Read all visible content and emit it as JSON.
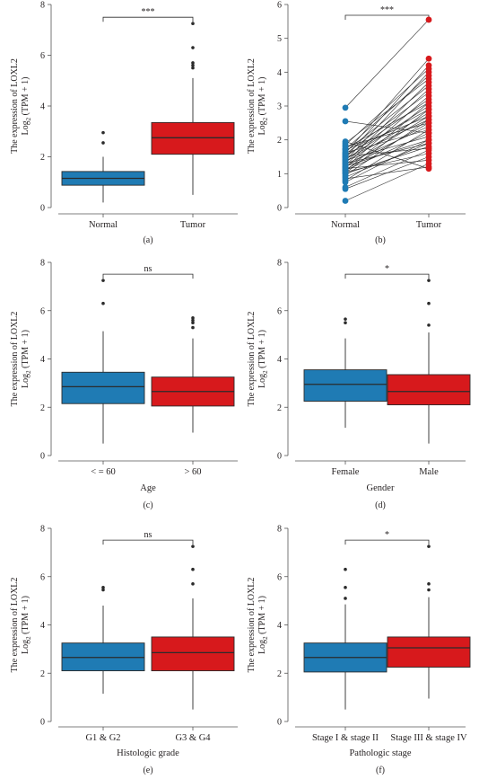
{
  "figure": {
    "colors": {
      "blue": "#1f7bb4",
      "red": "#d7191c",
      "line": "#2b2b2b",
      "axis": "#555555"
    },
    "y_axis_label_line1": "The expression of LOXL2",
    "y_axis_label_line2_pre": "Log",
    "y_axis_label_line2_sub": "2",
    "y_axis_label_line2_post": " (TPM + 1)"
  },
  "chart_data": [
    {
      "type": "box",
      "panel_label": "(a)",
      "xlabel": "",
      "ylim": [
        0,
        8
      ],
      "yticks": [
        0,
        2,
        4,
        6,
        8
      ],
      "ytick_labels": [
        "0",
        "2",
        "4",
        "6",
        "8"
      ],
      "significance": "***",
      "categories": [
        "Normal",
        "Tumor"
      ],
      "boxes": [
        {
          "q1": 0.88,
          "median": 1.15,
          "q3": 1.42,
          "whisker_low": 0.2,
          "whisker_high": 2.0,
          "outliers": [
            2.55,
            2.95
          ],
          "color": "blue"
        },
        {
          "q1": 2.1,
          "median": 2.75,
          "q3": 3.35,
          "whisker_low": 0.5,
          "whisker_high": 5.1,
          "outliers": [
            5.5,
            5.6,
            5.7,
            6.3,
            7.25
          ],
          "color": "red"
        }
      ]
    },
    {
      "type": "paired-scatter",
      "panel_label": "(b)",
      "xlabel": "",
      "ylim": [
        0,
        6
      ],
      "yticks": [
        0,
        1,
        2,
        3,
        4,
        5,
        6
      ],
      "ytick_labels": [
        "0",
        "1",
        "2",
        "3",
        "4",
        "5",
        "6"
      ],
      "significance": "***",
      "categories": [
        "Normal",
        "Tumor"
      ],
      "pairs": [
        [
          0.2,
          1.3
        ],
        [
          0.55,
          1.5
        ],
        [
          0.6,
          1.7
        ],
        [
          0.75,
          2.0
        ],
        [
          0.8,
          2.3
        ],
        [
          0.85,
          1.2
        ],
        [
          0.9,
          1.9
        ],
        [
          0.95,
          2.6
        ],
        [
          1.0,
          1.8
        ],
        [
          1.02,
          2.9
        ],
        [
          1.05,
          1.6
        ],
        [
          1.08,
          3.1
        ],
        [
          1.1,
          2.2
        ],
        [
          1.12,
          2.5
        ],
        [
          1.15,
          1.4
        ],
        [
          1.18,
          3.3
        ],
        [
          1.2,
          2.7
        ],
        [
          1.22,
          2.0
        ],
        [
          1.25,
          3.5
        ],
        [
          1.28,
          2.4
        ],
        [
          1.3,
          1.9
        ],
        [
          1.32,
          3.7
        ],
        [
          1.35,
          2.8
        ],
        [
          1.38,
          4.0
        ],
        [
          1.4,
          2.1
        ],
        [
          1.42,
          3.0
        ],
        [
          1.45,
          2.6
        ],
        [
          1.48,
          4.2
        ],
        [
          1.5,
          3.2
        ],
        [
          1.52,
          1.75
        ],
        [
          1.55,
          2.9
        ],
        [
          1.58,
          3.4
        ],
        [
          1.6,
          4.4
        ],
        [
          1.62,
          2.3
        ],
        [
          1.65,
          3.6
        ],
        [
          1.7,
          2.7
        ],
        [
          1.72,
          3.9
        ],
        [
          1.75,
          3.1
        ],
        [
          1.8,
          2.5
        ],
        [
          1.85,
          4.1
        ],
        [
          1.9,
          3.8
        ],
        [
          1.95,
          1.15
        ],
        [
          2.55,
          2.2
        ],
        [
          2.95,
          5.55
        ]
      ],
      "colors": [
        "blue",
        "red"
      ]
    },
    {
      "type": "box",
      "panel_label": "(c)",
      "xlabel": "Age",
      "ylim": [
        0,
        8
      ],
      "yticks": [
        0,
        2,
        4,
        6,
        8
      ],
      "ytick_labels": [
        "0",
        "2",
        "4",
        "6",
        "8"
      ],
      "significance": "ns",
      "categories": [
        "< = 60",
        "> 60"
      ],
      "boxes": [
        {
          "q1": 2.15,
          "median": 2.85,
          "q3": 3.45,
          "whisker_low": 0.5,
          "whisker_high": 5.15,
          "outliers": [
            6.3,
            7.25
          ],
          "color": "blue"
        },
        {
          "q1": 2.05,
          "median": 2.65,
          "q3": 3.25,
          "whisker_low": 0.95,
          "whisker_high": 4.85,
          "outliers": [
            5.3,
            5.5,
            5.6,
            5.7
          ],
          "color": "red"
        }
      ]
    },
    {
      "type": "box",
      "panel_label": "(d)",
      "xlabel": "Gender",
      "ylim": [
        0,
        8
      ],
      "yticks": [
        0,
        2,
        4,
        6,
        8
      ],
      "ytick_labels": [
        "0",
        "2",
        "4",
        "6",
        "8"
      ],
      "significance": "*",
      "categories": [
        "Female",
        "Male"
      ],
      "boxes": [
        {
          "q1": 2.25,
          "median": 2.95,
          "q3": 3.55,
          "whisker_low": 1.15,
          "whisker_high": 4.85,
          "outliers": [
            5.5,
            5.65
          ],
          "color": "blue"
        },
        {
          "q1": 2.1,
          "median": 2.65,
          "q3": 3.35,
          "whisker_low": 0.5,
          "whisker_high": 5.1,
          "outliers": [
            5.4,
            6.3,
            7.25
          ],
          "color": "red"
        }
      ]
    },
    {
      "type": "box",
      "panel_label": "(e)",
      "xlabel": "Histologic grade",
      "ylim": [
        0,
        8
      ],
      "yticks": [
        0,
        2,
        4,
        6,
        8
      ],
      "ytick_labels": [
        "0",
        "2",
        "4",
        "6",
        "8"
      ],
      "significance": "ns",
      "categories": [
        "G1 & G2",
        "G3 & G4"
      ],
      "boxes": [
        {
          "q1": 2.1,
          "median": 2.65,
          "q3": 3.25,
          "whisker_low": 1.15,
          "whisker_high": 4.8,
          "outliers": [
            5.45,
            5.55
          ],
          "color": "blue"
        },
        {
          "q1": 2.1,
          "median": 2.85,
          "q3": 3.5,
          "whisker_low": 0.5,
          "whisker_high": 5.1,
          "outliers": [
            5.7,
            6.3,
            7.25
          ],
          "color": "red"
        }
      ]
    },
    {
      "type": "box",
      "panel_label": "(f)",
      "xlabel": "Pathologic stage",
      "ylim": [
        0,
        8
      ],
      "yticks": [
        0,
        2,
        4,
        6,
        8
      ],
      "ytick_labels": [
        "0",
        "2",
        "4",
        "6",
        "8"
      ],
      "significance": "*",
      "categories": [
        "Stage I & stage II",
        "Stage III & stage IV"
      ],
      "boxes": [
        {
          "q1": 2.05,
          "median": 2.65,
          "q3": 3.25,
          "whisker_low": 0.5,
          "whisker_high": 4.85,
          "outliers": [
            5.1,
            5.55,
            6.3
          ],
          "color": "blue"
        },
        {
          "q1": 2.25,
          "median": 3.05,
          "q3": 3.5,
          "whisker_low": 0.95,
          "whisker_high": 5.15,
          "outliers": [
            5.45,
            5.7,
            7.25
          ],
          "color": "red"
        }
      ]
    }
  ]
}
